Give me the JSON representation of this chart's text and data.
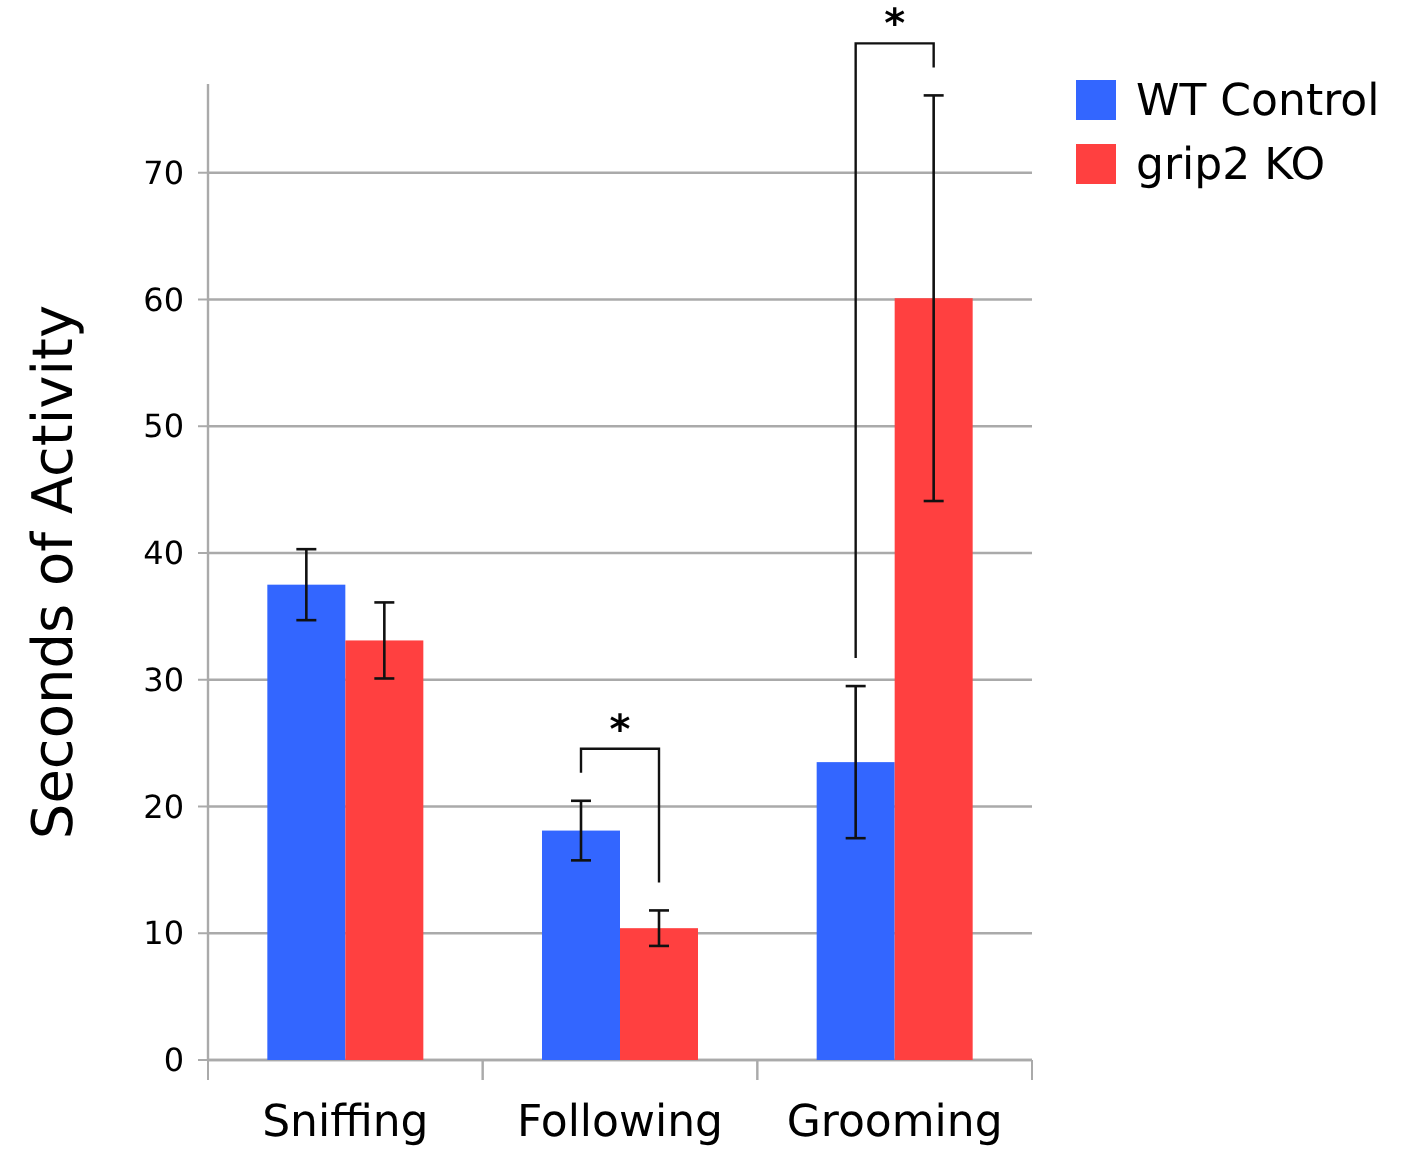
{
  "chart_data": {
    "type": "bar",
    "ylabel": "Seconds of Activity",
    "categories": [
      "Sniffing",
      "Following",
      "Grooming"
    ],
    "series": [
      {
        "name": "WT Control",
        "color": "#3366ff",
        "values": [
          37.5,
          18.1,
          23.5
        ],
        "errors": [
          2.8,
          2.35,
          6
        ]
      },
      {
        "name": "grip2 KO",
        "color": "#ff4040",
        "values": [
          33.1,
          10.4,
          60.1
        ],
        "errors": [
          3.0,
          1.4,
          16
        ]
      }
    ],
    "ylim": [
      0,
      77
    ],
    "yticks": [
      0,
      10,
      20,
      30,
      40,
      50,
      60,
      70
    ],
    "grid": "y",
    "legend": "top right",
    "annotations": [
      "*",
      "*"
    ]
  }
}
